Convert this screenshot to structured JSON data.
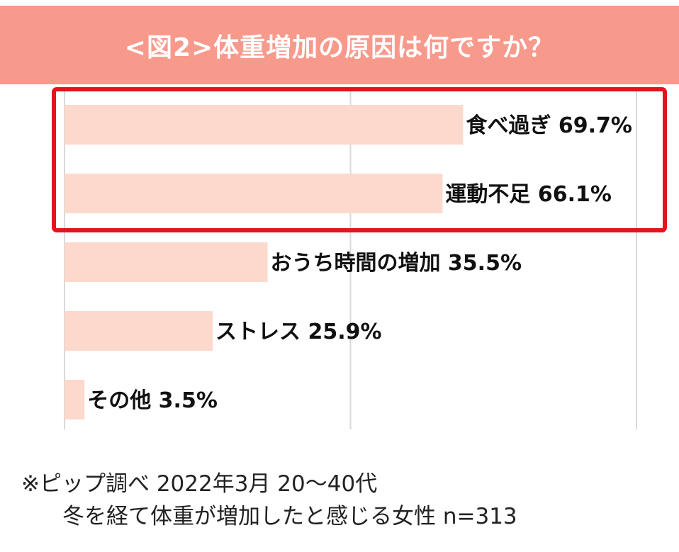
{
  "chart_data": {
    "type": "bar",
    "orientation": "horizontal",
    "title": "<図2>体重増加の原因は何ですか？",
    "categories": [
      "食べ過ぎ",
      "運動不足",
      "おうち時間の増加",
      "ストレス",
      "その他"
    ],
    "values": [
      69.7,
      66.1,
      35.5,
      25.9,
      3.5
    ],
    "value_labels": [
      "69.7%",
      "66.1%",
      "35.5%",
      "25.9%",
      "3.5%"
    ],
    "xlim": [
      0,
      100
    ],
    "grid": true,
    "highlighted_categories": [
      "食べ過ぎ",
      "運動不足"
    ],
    "colors": {
      "bar": "#fcd9cc",
      "title_bg": "#f79a8c",
      "highlight_box": "#e5131c",
      "grid": "#d9d9d9"
    }
  },
  "footnote": {
    "line1": "※ピップ調べ 2022年3月 20～40代",
    "line2": "冬を経て体重が増加したと感じる女性 n=313"
  }
}
